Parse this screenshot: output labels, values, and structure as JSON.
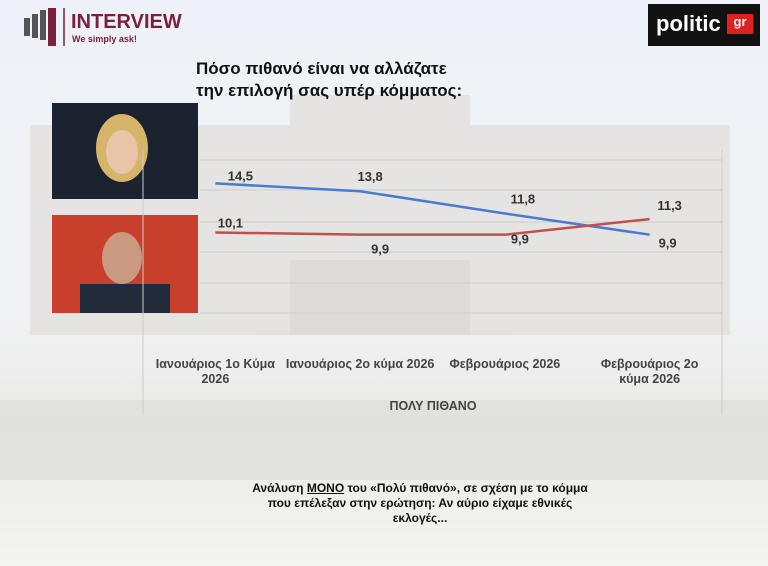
{
  "brand": {
    "name": "INTERVIEW",
    "slogan": "We simply ask!"
  },
  "publisher": {
    "name": "politic",
    "suffix": "gr"
  },
  "chart_data": {
    "type": "line",
    "title": [
      "Πόσο πιθανό είναι να αλλάζατε",
      "την επιλογή σας υπέρ κόμματος:"
    ],
    "categories": [
      "Ιανουάριος 1ο Κύμα 2026",
      "Ιανουάριος 2ο κύμα 2026",
      "Φεβρουάριος 2026",
      "Φεβρουάριος 2ο κύμα 2026"
    ],
    "x_label": "ΠΟΛΥ ΠΙΘΑΝΟ",
    "ylim": [
      0,
      17.5
    ],
    "series": [
      {
        "color": "#4a7bd0",
        "values": [
          14.5,
          13.8,
          11.8,
          9.9
        ],
        "value_labels": [
          "14,5",
          "13,8",
          "11,8",
          "9,9"
        ]
      },
      {
        "color": "#c0504d",
        "values": [
          10.1,
          9.9,
          9.9,
          11.3
        ],
        "value_labels": [
          "10,1",
          "9,9",
          "9,9",
          "11,3"
        ]
      }
    ],
    "footnote": [
      "Ανάλυση ",
      "ΜΟΝΟ",
      " του «Πολύ πιθανό», σε σχέση με το κόμμα που επέλεξαν στην ερώτηση: Αν αύριο είχαμε εθνικές εκλογές..."
    ]
  }
}
